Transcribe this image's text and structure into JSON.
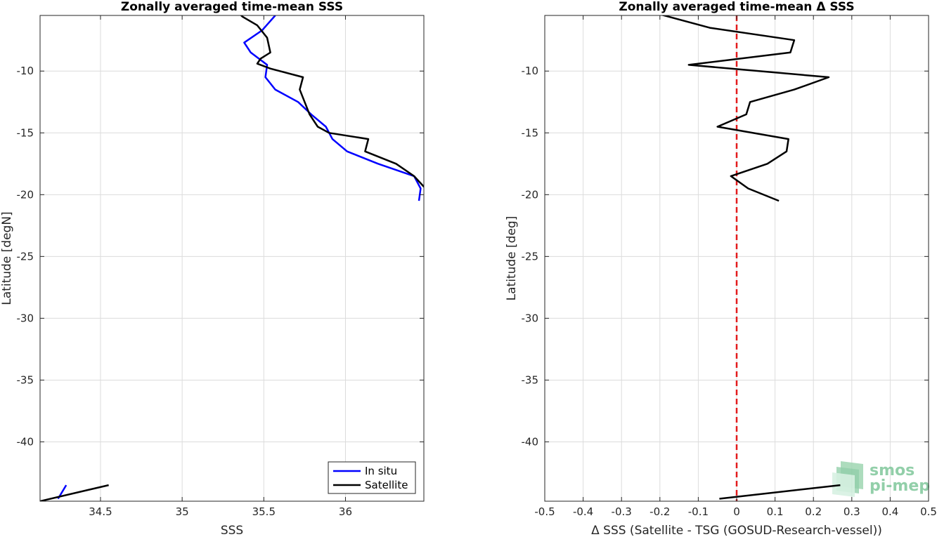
{
  "colors": {
    "in_situ": "#0000ff",
    "satellite": "#000000",
    "zero_line": "#e31a1c",
    "logo": "#7fc79b"
  },
  "logo": {
    "line1": "smos",
    "line2": "pi-mep"
  },
  "chart_data": [
    {
      "type": "line",
      "title": "Zonally averaged time-mean SSS",
      "xlabel": "SSS",
      "ylabel": "Latitude [degN]",
      "xlim": [
        34.13,
        36.48
      ],
      "ylim": [
        -44.8,
        -5.5
      ],
      "xticks": [
        34.5,
        35,
        35.5,
        36
      ],
      "xtick_labels": [
        "34.5",
        "35",
        "35.5",
        "36"
      ],
      "yticks": [
        -10,
        -15,
        -20,
        -25,
        -30,
        -35,
        -40
      ],
      "ytick_labels": [
        "-10",
        "-15",
        "-20",
        "-25",
        "-30",
        "-35",
        "-40"
      ],
      "grid": true,
      "legend": "bottom-right",
      "series": [
        {
          "name": "In situ",
          "color": "#0000ff",
          "segments": [
            [
              [
                35.57,
                -5.5
              ],
              [
                35.49,
                -6.7
              ],
              [
                35.38,
                -7.7
              ],
              [
                35.42,
                -8.5
              ],
              [
                35.52,
                -9.5
              ],
              [
                35.51,
                -10.5
              ],
              [
                35.57,
                -11.5
              ],
              [
                35.71,
                -12.5
              ],
              [
                35.79,
                -13.5
              ],
              [
                35.88,
                -14.5
              ],
              [
                35.92,
                -15.5
              ],
              [
                36.01,
                -16.5
              ],
              [
                36.2,
                -17.5
              ],
              [
                36.42,
                -18.5
              ],
              [
                36.46,
                -19.5
              ],
              [
                36.45,
                -20.5
              ]
            ],
            [
              [
                34.24,
                -44.6
              ],
              [
                34.29,
                -43.5
              ]
            ]
          ]
        },
        {
          "name": "Satellite",
          "color": "#000000",
          "segments": [
            [
              [
                35.32,
                -5.0
              ],
              [
                35.37,
                -5.6
              ],
              [
                35.46,
                -6.3
              ],
              [
                35.52,
                -7.3
              ],
              [
                35.54,
                -8.5
              ],
              [
                35.48,
                -9.0
              ],
              [
                35.46,
                -9.4
              ],
              [
                35.54,
                -9.8
              ],
              [
                35.74,
                -10.5
              ],
              [
                35.72,
                -11.5
              ],
              [
                35.75,
                -12.5
              ],
              [
                35.78,
                -13.5
              ],
              [
                35.83,
                -14.5
              ],
              [
                35.9,
                -15.0
              ],
              [
                36.14,
                -15.5
              ],
              [
                36.12,
                -16.5
              ],
              [
                36.31,
                -17.5
              ],
              [
                36.42,
                -18.5
              ],
              [
                36.49,
                -19.5
              ]
            ],
            [
              [
                34.13,
                -44.8
              ],
              [
                34.55,
                -43.5
              ]
            ]
          ]
        }
      ]
    },
    {
      "type": "line",
      "title": "Zonally averaged time-mean Δ SSS",
      "xlabel": "Δ SSS (Satellite - TSG (GOSUD-Research-vessel))",
      "ylabel": "Latitude [deg]",
      "xlim": [
        -0.5,
        0.5
      ],
      "ylim": [
        -44.8,
        -5.5
      ],
      "xticks": [
        -0.5,
        -0.4,
        -0.3,
        -0.2,
        -0.1,
        0,
        0.1,
        0.2,
        0.3,
        0.4,
        0.5
      ],
      "xtick_labels": [
        "-0.5",
        "-0.4",
        "-0.3",
        "-0.2",
        "-0.1",
        "0",
        "0.1",
        "0.2",
        "0.3",
        "0.4",
        "0.5"
      ],
      "yticks": [
        -10,
        -15,
        -20,
        -25,
        -30,
        -35,
        -40
      ],
      "ytick_labels": [
        "-10",
        "-15",
        "-20",
        "-25",
        "-30",
        "-35",
        "-40"
      ],
      "grid": true,
      "reference_line": {
        "x": 0,
        "style": "dashed",
        "color": "#e31a1c"
      },
      "series": [
        {
          "color": "#000000",
          "segments": [
            [
              [
                -0.225,
                -5.2
              ],
              [
                -0.07,
                -6.5
              ],
              [
                0.15,
                -7.5
              ],
              [
                0.14,
                -8.5
              ],
              [
                -0.125,
                -9.5
              ],
              [
                0.24,
                -10.5
              ],
              [
                0.15,
                -11.5
              ],
              [
                0.035,
                -12.5
              ],
              [
                0.025,
                -13.5
              ],
              [
                -0.05,
                -14.5
              ],
              [
                0.135,
                -15.5
              ],
              [
                0.13,
                -16.5
              ],
              [
                0.08,
                -17.5
              ],
              [
                -0.015,
                -18.5
              ],
              [
                0.03,
                -19.5
              ],
              [
                0.11,
                -20.5
              ]
            ],
            [
              [
                -0.045,
                -44.6
              ],
              [
                0.27,
                -43.5
              ]
            ]
          ]
        }
      ]
    }
  ]
}
